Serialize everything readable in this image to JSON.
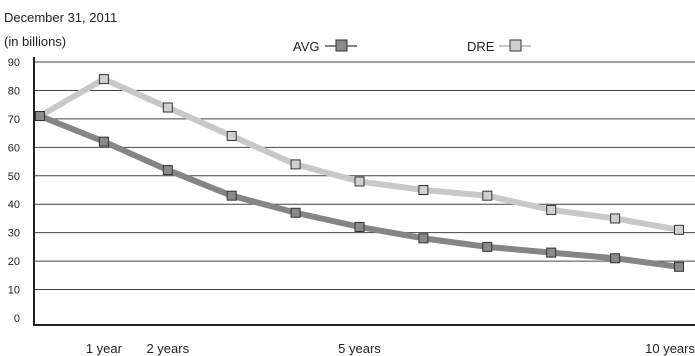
{
  "chart_data": {
    "type": "line",
    "title": "December 31, 2011",
    "subtitle": "(in billions)",
    "xlabel": "",
    "ylabel": "",
    "ylim": [
      0,
      90
    ],
    "yticks": [
      "0",
      "10",
      "20",
      "30",
      "40",
      "50",
      "60",
      "70",
      "80",
      "90"
    ],
    "x_ticks": [
      "1 year",
      "2 years",
      "5 years",
      "10 years"
    ],
    "grid": true,
    "legend_position": "top-center",
    "series": [
      {
        "name": "AVG",
        "color": "#8a8a8a",
        "line_color": "#858585",
        "marker": "square",
        "values": [
          71,
          62,
          52,
          43,
          37,
          32,
          28,
          25,
          23,
          21,
          18
        ]
      },
      {
        "name": "DRE",
        "color": "#d0d0d0",
        "line_color": "#c8c8c8",
        "marker": "square",
        "values": [
          71,
          84,
          74,
          64,
          54,
          48,
          45,
          43,
          38,
          35,
          31
        ]
      }
    ]
  }
}
